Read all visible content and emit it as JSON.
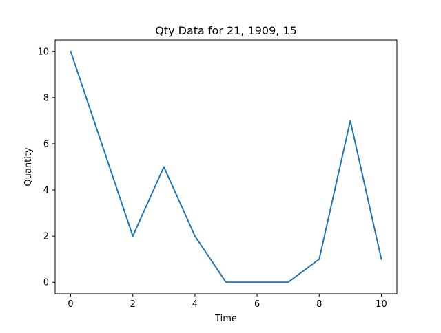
{
  "chart_data": {
    "type": "line",
    "title": "Qty Data for 21, 1909, 15",
    "xlabel": "Time",
    "ylabel": "Quantity",
    "x": [
      0,
      1,
      2,
      3,
      4,
      5,
      6,
      7,
      8,
      9,
      10
    ],
    "series": [
      {
        "values": [
          10,
          6,
          2,
          5,
          2,
          0,
          0,
          0,
          1,
          7,
          1
        ],
        "color": "#1f77b4"
      }
    ],
    "xlim": [
      -0.5,
      10.5
    ],
    "ylim": [
      -0.5,
      10.5
    ],
    "xticks": [
      0,
      2,
      4,
      6,
      8,
      10
    ],
    "yticks": [
      0,
      2,
      4,
      6,
      8,
      10
    ],
    "grid": false,
    "legend": "none"
  }
}
